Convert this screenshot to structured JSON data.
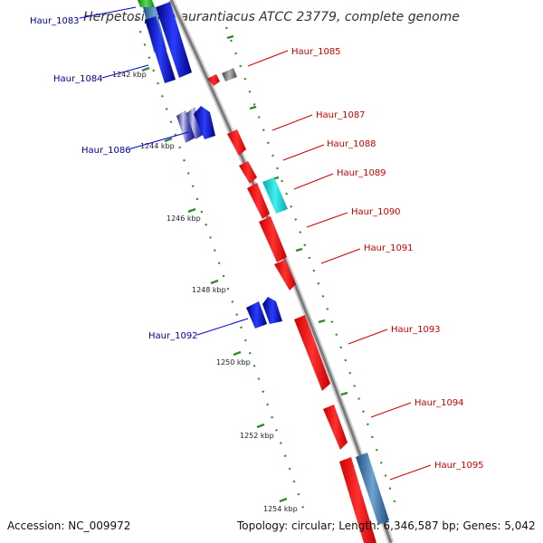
{
  "title": "Herpetosiphon aurantiacus ATCC 23779, complete genome",
  "accession_text": "Accession: NC_009972",
  "topology_text": "Topology: circular; Length: 6,346,587 bp; Genes: 5,042",
  "colors": {
    "backbone": "#888888",
    "forward_gene": "#ff0000",
    "reverse_gene": "#0000ff",
    "forward_label": "#cc0000",
    "reverse_label": "#00009a",
    "tick": "#228b22"
  },
  "tick_labels": [
    "1242 kbp",
    "1244 kbp",
    "1246 kbp",
    "1248 kbp",
    "1250 kbp",
    "1252 kbp",
    "1254 kbp"
  ],
  "gene_labels": {
    "reverse": [
      "Haur_1083",
      "Haur_1084",
      "Haur_1086",
      "Haur_1092"
    ],
    "forward": [
      "Haur_1085",
      "Haur_1087",
      "Haur_1088",
      "Haur_1089",
      "Haur_1090",
      "Haur_1091",
      "Haur_1093",
      "Haur_1094",
      "Haur_1095"
    ]
  }
}
